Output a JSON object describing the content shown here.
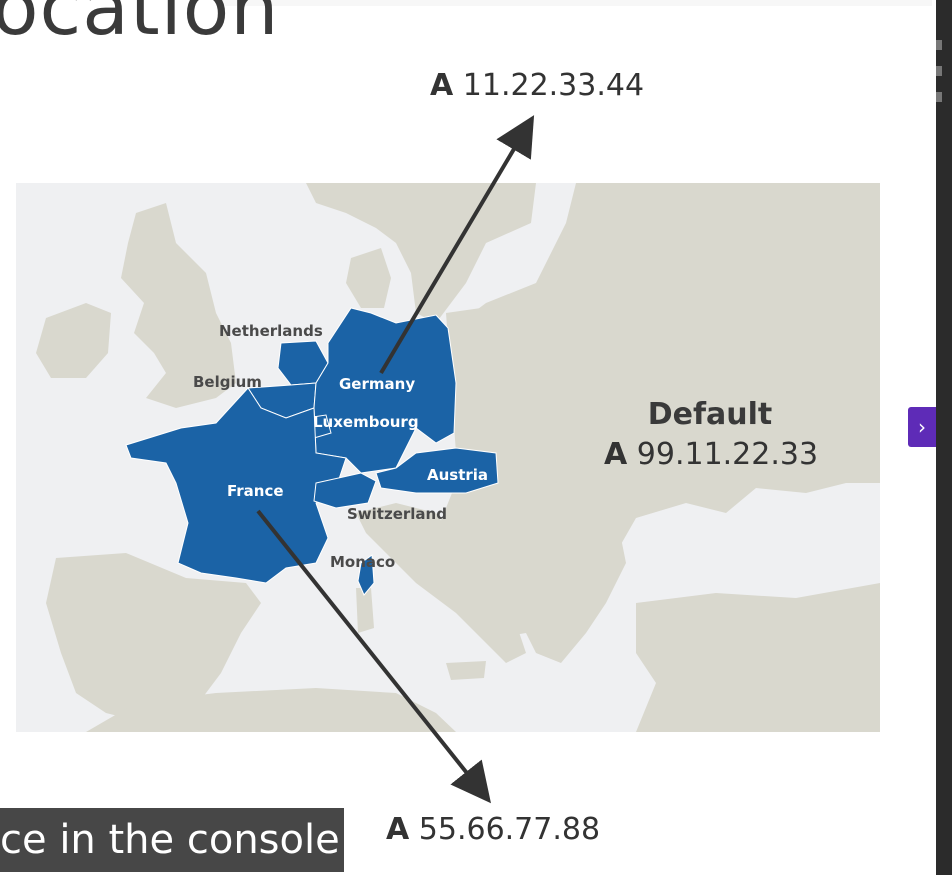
{
  "slide": {
    "title": "ocation",
    "caption": "ce in the console."
  },
  "records": {
    "top": {
      "type": "A",
      "ip": "11.22.33.44"
    },
    "bottom": {
      "type": "A",
      "ip": "55.66.77.88"
    },
    "default": {
      "title": "Default",
      "type": "A",
      "ip": "99.11.22.33"
    }
  },
  "map": {
    "labels": {
      "netherlands": "Netherlands",
      "belgium": "Belgium",
      "germany": "Germany",
      "luxembourg": "Luxembourg",
      "france": "France",
      "austria": "Austria",
      "switzerland": "Switzerland",
      "monaco": "Monaco"
    },
    "colors": {
      "highlight": "#1b63a6",
      "land": "#d9d8ce",
      "sea": "#eff0f2",
      "border": "#ffffff",
      "arrow": "#333333"
    }
  },
  "nav": {
    "toggle_icon": "chevron-right-icon",
    "toggle_glyph": "›"
  }
}
